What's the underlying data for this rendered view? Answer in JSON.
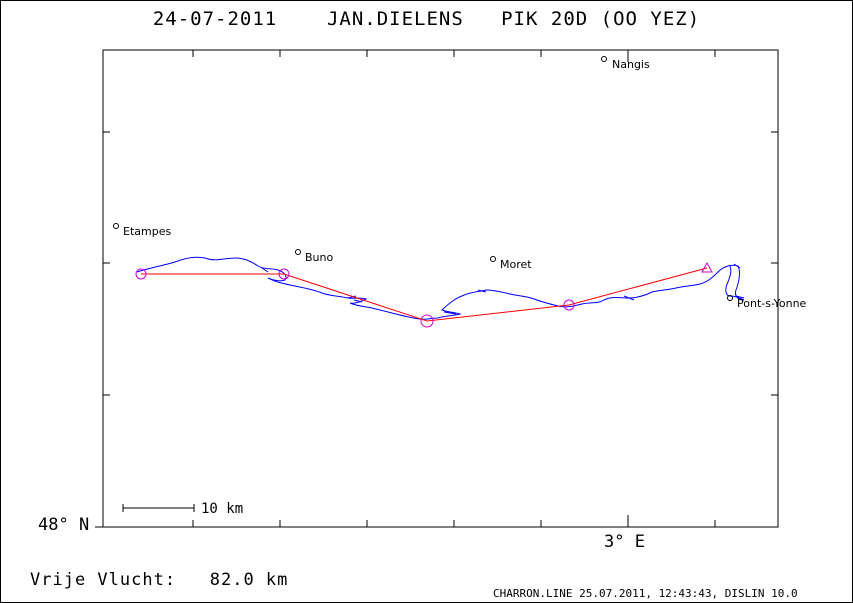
{
  "title": "24-07-2011    JAN.DIELENS   PIK 20D (OO YEZ)",
  "axes": {
    "lat_label": "48° N",
    "lon_label": "3° E"
  },
  "towns": [
    {
      "name": "Nangis"
    },
    {
      "name": "Etampes"
    },
    {
      "name": "Buno"
    },
    {
      "name": "Moret"
    },
    {
      "name": "Pont-s-Yonne"
    }
  ],
  "scale_bar": {
    "label": "10 km"
  },
  "distance": "Vrije Vlucht:   82.0 km",
  "footer": "CHARRON.LINE 25.07.2011, 12:43:43, DISLIN 10.0",
  "colors": {
    "track": "#0000ff",
    "task_line": "#ff0000",
    "turnpoints": "#cc00cc",
    "frame": "#000000"
  }
}
